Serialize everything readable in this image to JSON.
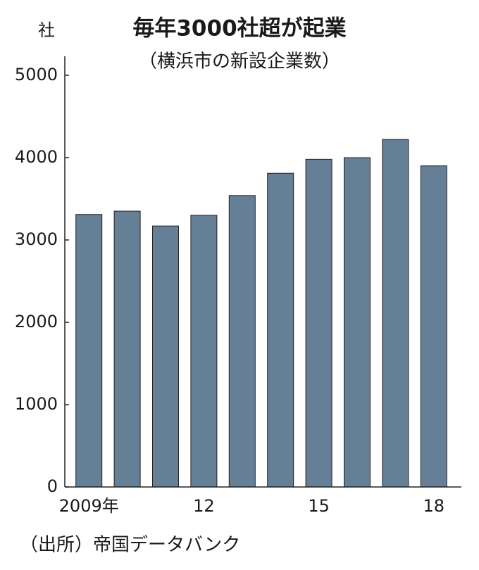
{
  "chart_data": {
    "type": "bar",
    "title": "毎年3000社超が起業",
    "subtitle": "（横浜市の新設企業数）",
    "y_unit": "社",
    "source": "（出所）帝国データバンク",
    "categories": [
      "2009年",
      null,
      null,
      "12",
      null,
      null,
      "15",
      null,
      null,
      "18"
    ],
    "values": [
      3310,
      3350,
      3170,
      3300,
      3540,
      3810,
      3980,
      4000,
      4220,
      3900
    ],
    "color": "#657f96",
    "ylim": [
      0,
      5000
    ],
    "yticks": [
      0,
      1000,
      2000,
      3000,
      4000,
      5000
    ],
    "grid": false
  }
}
